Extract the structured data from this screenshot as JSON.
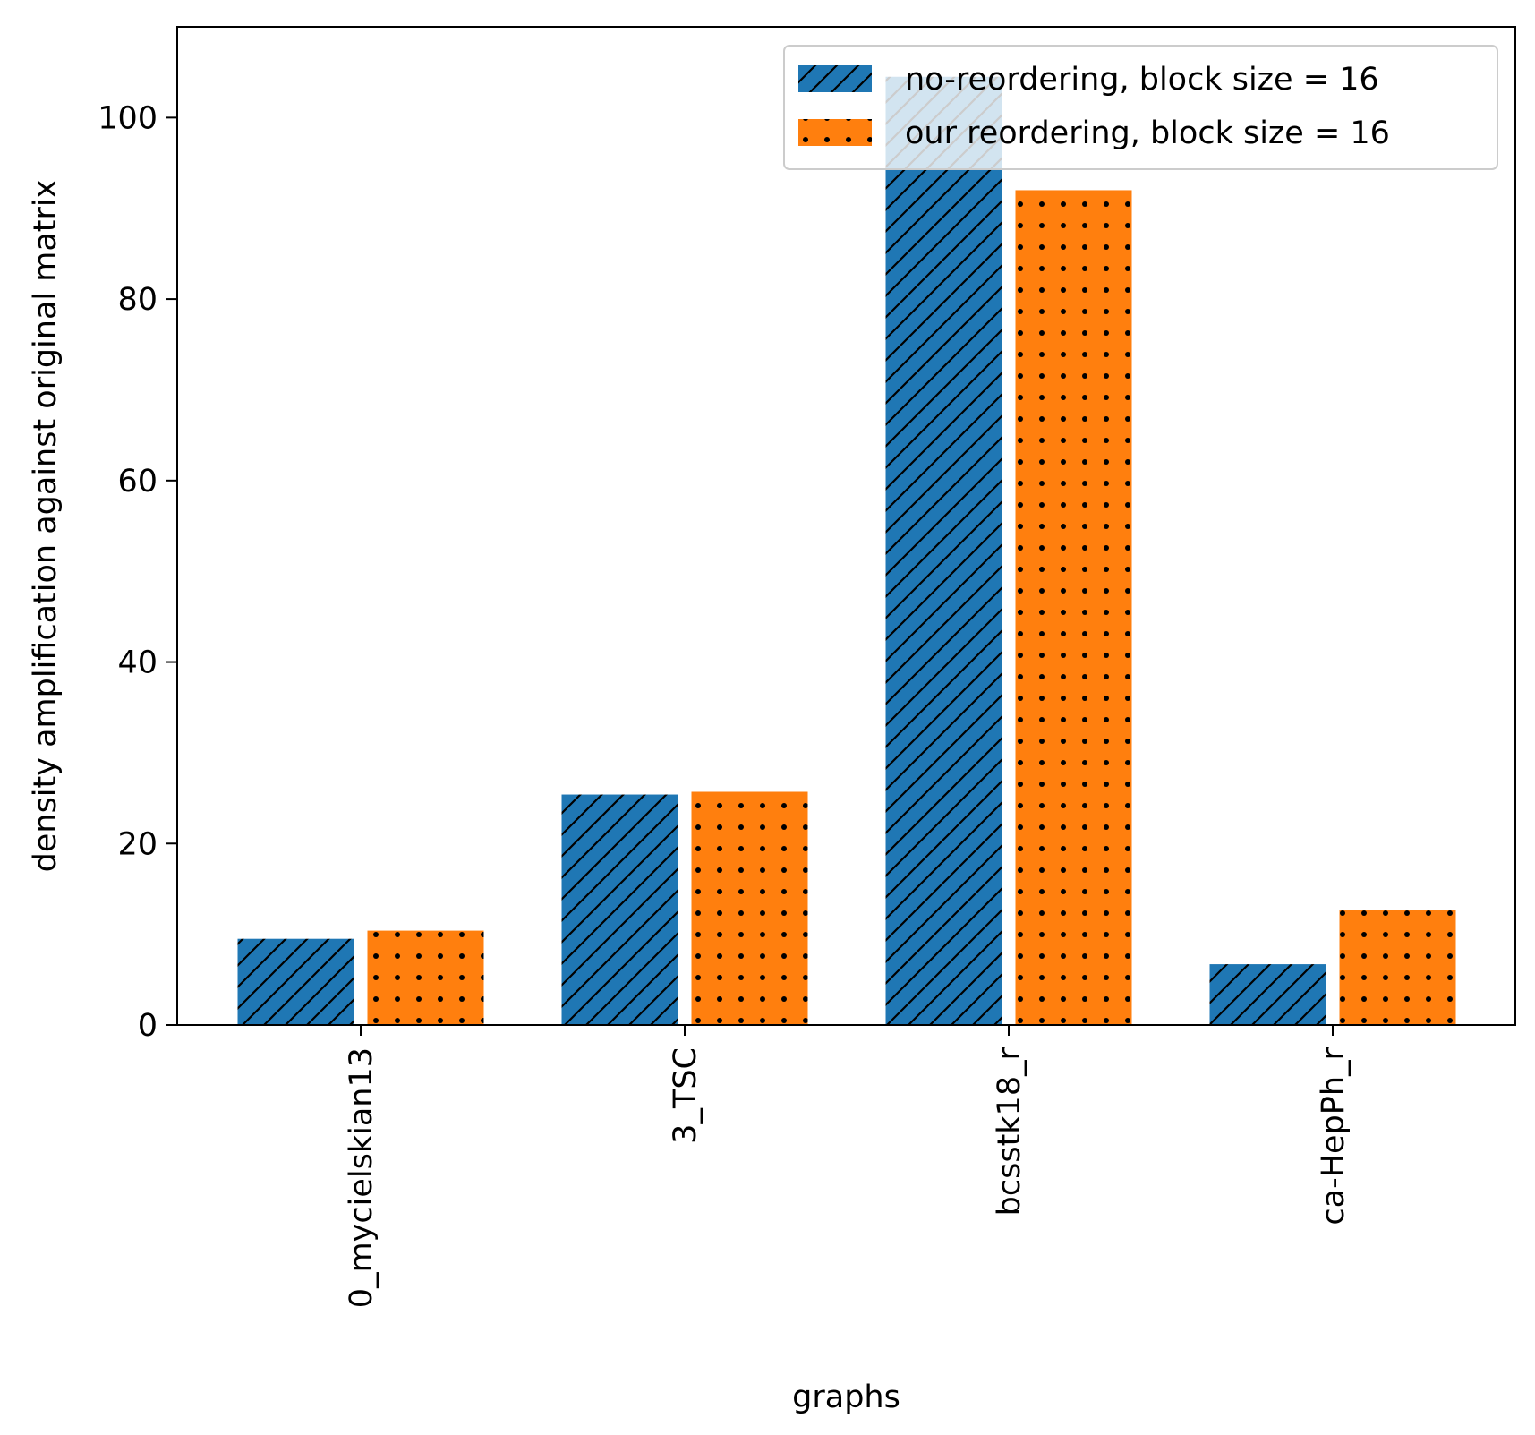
{
  "chart_data": {
    "type": "bar",
    "title": "",
    "xlabel": "graphs",
    "ylabel": "density amplification against original matrix",
    "categories": [
      "0_mycielskian13",
      "3_TSC",
      "bcsstk18_r",
      "ca-HepPh_r"
    ],
    "series": [
      {
        "name": "no-reordering, block size = 16",
        "values": [
          9.5,
          25.4,
          104.5,
          6.7
        ],
        "color": "#1f77b4",
        "hatch": "diagonal-lines"
      },
      {
        "name": "our reordering, block size = 16",
        "values": [
          10.4,
          25.7,
          92.0,
          12.7
        ],
        "color": "#ff7f0e",
        "hatch": "dots"
      }
    ],
    "ylim": [
      0,
      110
    ],
    "yticks": [
      0,
      20,
      40,
      60,
      80,
      100
    ],
    "grid": false,
    "legend_position": "top-right"
  }
}
